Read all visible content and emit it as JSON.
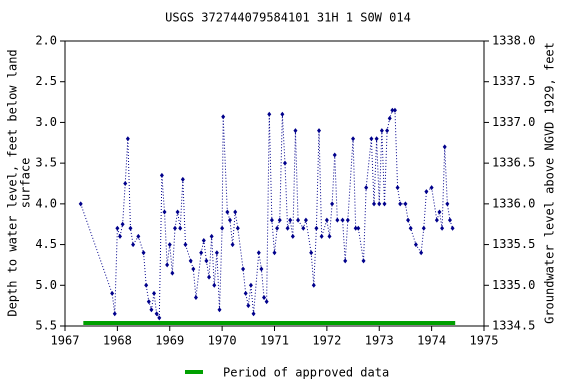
{
  "chart_data": {
    "type": "scatter",
    "title": "USGS 372744079584101 31H  1 S0W 014",
    "ylabel": [
      "Depth to water level, feet below land",
      "surface"
    ],
    "y2label": "Groundwater level above NGVD 1929, feet",
    "xlim": [
      1967,
      1975
    ],
    "xticks": [
      1967,
      1968,
      1969,
      1970,
      1971,
      1972,
      1973,
      1974,
      1975
    ],
    "ylim": [
      2.0,
      5.5
    ],
    "yticks": [
      {
        "value": 2.0,
        "label": "2.0"
      },
      {
        "value": 2.5,
        "label": "2.5"
      },
      {
        "value": 3.0,
        "label": "3.0"
      },
      {
        "value": 3.5,
        "label": "3.5"
      },
      {
        "value": 4.0,
        "label": "4.0"
      },
      {
        "value": 4.5,
        "label": "4.5"
      },
      {
        "value": 5.0,
        "label": "5.0"
      },
      {
        "value": 5.5,
        "label": "5.5"
      }
    ],
    "y2lim": [
      1338.0,
      1334.5
    ],
    "y2ticks": [
      {
        "value": 1338.0,
        "label": "1338.0"
      },
      {
        "value": 1337.5,
        "label": "1337.5"
      },
      {
        "value": 1337.0,
        "label": "1337.0"
      },
      {
        "value": 1336.5,
        "label": "1336.5"
      },
      {
        "value": 1336.0,
        "label": "1336.0"
      },
      {
        "value": 1335.5,
        "label": "1335.5"
      },
      {
        "value": 1335.0,
        "label": "1335.0"
      },
      {
        "value": 1334.5,
        "label": "1334.5"
      }
    ],
    "series": [
      {
        "color": "#00008b",
        "x": [
          1967.3,
          1967.9,
          1967.95,
          1968.0,
          1968.05,
          1968.1,
          1968.15,
          1968.2,
          1968.25,
          1968.3,
          1968.4,
          1968.5,
          1968.55,
          1968.6,
          1968.65,
          1968.7,
          1968.75,
          1968.8,
          1968.85,
          1968.9,
          1968.95,
          1969.0,
          1969.05,
          1969.1,
          1969.15,
          1969.2,
          1969.25,
          1969.3,
          1969.4,
          1969.45,
          1969.5,
          1969.6,
          1969.65,
          1969.7,
          1969.75,
          1969.8,
          1969.85,
          1969.9,
          1969.95,
          1970.0,
          1970.02,
          1970.1,
          1970.15,
          1970.2,
          1970.25,
          1970.3,
          1970.4,
          1970.45,
          1970.5,
          1970.55,
          1970.6,
          1970.7,
          1970.75,
          1970.8,
          1970.85,
          1970.9,
          1970.95,
          1971.0,
          1971.05,
          1971.1,
          1971.15,
          1971.2,
          1971.25,
          1971.3,
          1971.35,
          1971.4,
          1971.45,
          1971.55,
          1971.6,
          1971.7,
          1971.75,
          1971.8,
          1971.85,
          1971.9,
          1972.0,
          1972.05,
          1972.1,
          1972.15,
          1972.2,
          1972.3,
          1972.35,
          1972.4,
          1972.5,
          1972.55,
          1972.6,
          1972.7,
          1972.75,
          1972.85,
          1972.9,
          1972.95,
          1973.0,
          1973.05,
          1973.1,
          1973.15,
          1973.2,
          1973.25,
          1973.3,
          1973.35,
          1973.4,
          1973.5,
          1973.55,
          1973.6,
          1973.7,
          1973.8,
          1973.85,
          1973.9,
          1974.0,
          1974.1,
          1974.15,
          1974.2,
          1974.25,
          1974.3,
          1974.35,
          1974.4
        ],
        "values": [
          4.0,
          5.1,
          5.35,
          4.3,
          4.4,
          4.25,
          3.75,
          3.2,
          4.3,
          4.5,
          4.4,
          4.6,
          5.0,
          5.2,
          5.3,
          5.1,
          5.35,
          5.4,
          3.65,
          4.1,
          4.75,
          4.5,
          4.85,
          4.3,
          4.1,
          4.3,
          3.7,
          4.5,
          4.7,
          4.8,
          5.15,
          4.6,
          4.45,
          4.7,
          4.9,
          4.4,
          5.0,
          4.6,
          5.3,
          4.3,
          2.93,
          4.1,
          4.2,
          4.5,
          4.1,
          4.3,
          4.8,
          5.1,
          5.25,
          5.0,
          5.35,
          4.6,
          4.8,
          5.15,
          5.2,
          2.9,
          4.2,
          4.6,
          4.3,
          4.2,
          2.9,
          3.5,
          4.3,
          4.2,
          4.4,
          3.1,
          4.2,
          4.3,
          4.2,
          4.6,
          5.0,
          4.3,
          3.1,
          4.4,
          4.2,
          4.4,
          4.0,
          3.4,
          4.2,
          4.2,
          4.7,
          4.2,
          3.2,
          4.3,
          4.3,
          4.7,
          3.8,
          3.2,
          4.0,
          3.2,
          4.0,
          3.1,
          4.0,
          3.1,
          2.95,
          2.85,
          2.85,
          3.8,
          4.0,
          4.0,
          4.2,
          4.3,
          4.5,
          4.6,
          4.3,
          3.85,
          3.8,
          4.2,
          4.1,
          4.3,
          3.3,
          4.0,
          4.2,
          4.3
        ]
      }
    ],
    "approved_period": [
      1967.35,
      1974.45
    ],
    "approved_color": "#00a000",
    "legend": "Period of approved data"
  }
}
